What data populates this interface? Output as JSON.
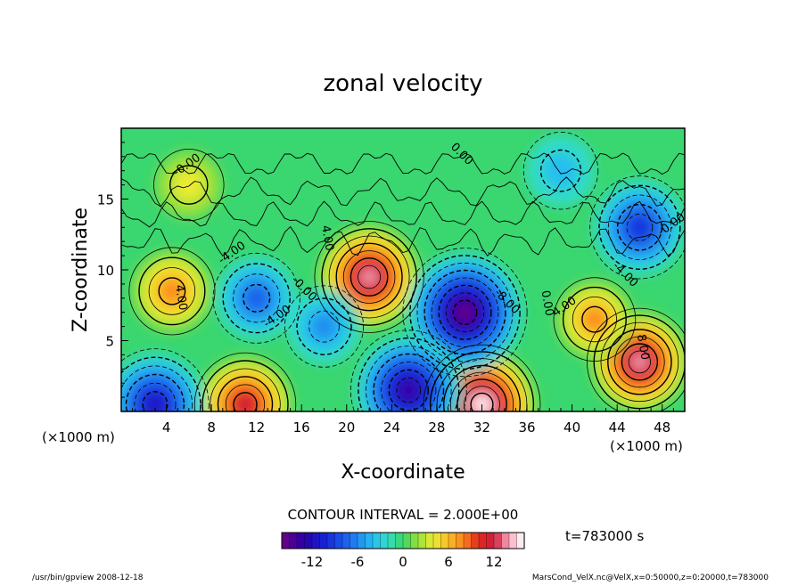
{
  "chart_data": {
    "type": "heatmap",
    "title": "zonal velocity",
    "xlabel": "X-coordinate",
    "ylabel": "Z-coordinate",
    "x_unit": "(×1000 m)",
    "z_unit": "(×1000 m)",
    "x_ticks": [
      "4",
      "8",
      "12",
      "16",
      "20",
      "24",
      "28",
      "32",
      "36",
      "40",
      "44",
      "48"
    ],
    "y_ticks": [
      "5",
      "10",
      "15"
    ],
    "xlim": [
      0,
      50
    ],
    "ylim": [
      0,
      20
    ],
    "contour_interval": "CONTOUR INTERVAL = 2.000E+00",
    "colorbar": {
      "range": [
        -16,
        16
      ],
      "tick_labels": [
        "-12",
        "-6",
        "0",
        "6",
        "12"
      ],
      "tick_values": [
        -12,
        -6,
        0,
        6,
        12
      ]
    },
    "contour_labels": [
      "-0.00",
      "0.00",
      "4.00",
      "-4.00",
      "-0.00",
      "4.00",
      "-4.00",
      "-8.00",
      "0.00",
      "4.00",
      "-4.00",
      "8.00",
      "-0.00"
    ],
    "time_label": "t=783000  s",
    "footer_left": "/usr/bin/gpview   2008-12-18",
    "footer_right": "MarsCond_VelX.nc@VelX,x=0:50000,z=0:20000,t=783000",
    "features": [
      {
        "kind": "max",
        "x": 4.5,
        "z": 8.5,
        "value": 8
      },
      {
        "kind": "max",
        "x": 22,
        "z": 9.5,
        "value": 14
      },
      {
        "kind": "max",
        "x": 32,
        "z": 0.5,
        "value": 16
      },
      {
        "kind": "max",
        "x": 11,
        "z": 0.5,
        "value": 12
      },
      {
        "kind": "max",
        "x": 46,
        "z": 3.5,
        "value": 13
      },
      {
        "kind": "max",
        "x": 42,
        "z": 6.5,
        "value": 7
      },
      {
        "kind": "max",
        "x": 6,
        "z": 16,
        "value": 4
      },
      {
        "kind": "min",
        "x": 30.5,
        "z": 7,
        "value": -16
      },
      {
        "kind": "min",
        "x": 46,
        "z": 13,
        "value": -10
      },
      {
        "kind": "min",
        "x": 12,
        "z": 8,
        "value": -7
      },
      {
        "kind": "min",
        "x": 18,
        "z": 6,
        "value": -5
      },
      {
        "kind": "min",
        "x": 3,
        "z": 0.5,
        "value": -12
      },
      {
        "kind": "min",
        "x": 25.5,
        "z": 1.5,
        "value": -14
      },
      {
        "kind": "min",
        "x": 39,
        "z": 17,
        "value": -4
      }
    ]
  }
}
